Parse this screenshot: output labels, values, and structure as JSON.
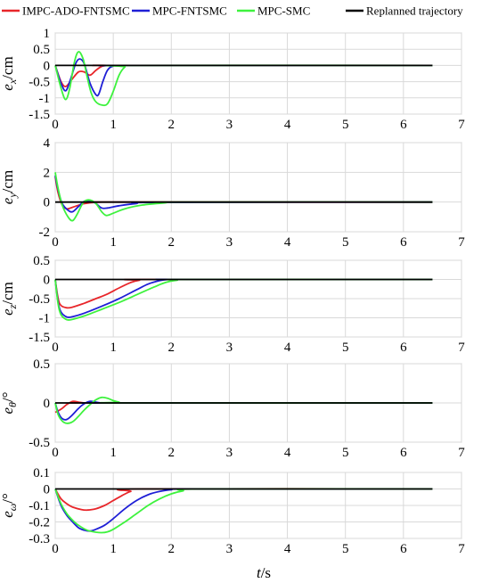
{
  "legend": [
    {
      "label": "IMPC-ADO-FNTSMC",
      "color": "#e8262a"
    },
    {
      "label": "MPC-FNTSMC",
      "color": "#1f1fd6"
    },
    {
      "label": "MPC-SMC",
      "color": "#3ef23e"
    },
    {
      "label": "Replanned trajectory",
      "color": "#000000"
    }
  ],
  "xlabel": {
    "italic": "t",
    "rest": "/s"
  },
  "chart_data": [
    {
      "type": "line",
      "ylabel": {
        "italic": "e",
        "sub": "x",
        "unit": "/cm"
      },
      "xlim": [
        0,
        7
      ],
      "ylim": [
        -1.5,
        1
      ],
      "xticks": [
        "0",
        "1",
        "2",
        "3",
        "4",
        "5",
        "6",
        "7"
      ],
      "yticks": [
        "1",
        "0.5",
        "0",
        "-0.5",
        "-1",
        "-1.5"
      ],
      "series": [
        {
          "name": "IMPC-ADO-FNTSMC",
          "x": [
            0,
            0.1,
            0.18,
            0.28,
            0.4,
            0.5,
            0.6,
            0.7,
            0.8,
            0.9,
            1.1,
            6.5
          ],
          "y": [
            0,
            -0.5,
            -0.65,
            -0.45,
            -0.2,
            -0.2,
            -0.3,
            -0.15,
            -0.03,
            0,
            0,
            0
          ]
        },
        {
          "name": "MPC-FNTSMC",
          "x": [
            0,
            0.1,
            0.18,
            0.26,
            0.35,
            0.42,
            0.5,
            0.6,
            0.7,
            0.75,
            0.82,
            0.9,
            1.0,
            1.2,
            6.5
          ],
          "y": [
            0,
            -0.55,
            -0.78,
            -0.45,
            0.05,
            0.2,
            0.05,
            -0.55,
            -0.9,
            -0.88,
            -0.5,
            -0.15,
            -0.02,
            0,
            0
          ]
        },
        {
          "name": "MPC-SMC",
          "x": [
            0,
            0.1,
            0.18,
            0.25,
            0.33,
            0.4,
            0.48,
            0.55,
            0.62,
            0.7,
            0.8,
            0.9,
            1.0,
            1.1,
            1.2,
            1.3,
            6.5
          ],
          "y": [
            0,
            -0.7,
            -1.05,
            -0.7,
            0.1,
            0.42,
            0.2,
            -0.35,
            -0.85,
            -1.12,
            -1.22,
            -1.18,
            -0.8,
            -0.3,
            -0.05,
            0,
            0
          ]
        },
        {
          "name": "Replanned trajectory",
          "x": [
            0,
            6.5
          ],
          "y": [
            0,
            0
          ]
        }
      ]
    },
    {
      "type": "line",
      "ylabel": {
        "italic": "e",
        "sub": "y",
        "unit": "/cm"
      },
      "xlim": [
        0,
        7
      ],
      "ylim": [
        -2,
        4
      ],
      "xticks": [
        "0",
        "1",
        "2",
        "3",
        "4",
        "5",
        "6",
        "7"
      ],
      "yticks": [
        "4",
        "2",
        "0",
        "-2"
      ],
      "series": [
        {
          "name": "IMPC-ADO-FNTSMC",
          "x": [
            0,
            0.05,
            0.12,
            0.2,
            0.3,
            0.45,
            0.6,
            0.8,
            1.0,
            6.5
          ],
          "y": [
            1.7,
            0.6,
            -0.2,
            -0.45,
            -0.35,
            -0.15,
            -0.05,
            0,
            0,
            0
          ]
        },
        {
          "name": "MPC-FNTSMC",
          "x": [
            0,
            0.05,
            0.12,
            0.22,
            0.3,
            0.4,
            0.5,
            0.6,
            0.7,
            0.8,
            0.9,
            1.1,
            1.4,
            1.8,
            6.5
          ],
          "y": [
            1.8,
            0.8,
            -0.1,
            -0.55,
            -0.65,
            -0.3,
            0.05,
            0.1,
            -0.1,
            -0.4,
            -0.4,
            -0.25,
            -0.1,
            -0.02,
            0
          ]
        },
        {
          "name": "MPC-SMC",
          "x": [
            0,
            0.05,
            0.12,
            0.22,
            0.3,
            0.38,
            0.48,
            0.58,
            0.7,
            0.8,
            0.88,
            1.0,
            1.2,
            1.5,
            1.9,
            2.2,
            6.5
          ],
          "y": [
            2.0,
            0.9,
            -0.2,
            -1.0,
            -1.25,
            -0.8,
            -0.05,
            0.15,
            -0.1,
            -0.65,
            -0.9,
            -0.75,
            -0.45,
            -0.2,
            -0.05,
            0,
            0
          ]
        },
        {
          "name": "Replanned trajectory",
          "x": [
            0,
            6.5
          ],
          "y": [
            0,
            0
          ]
        }
      ]
    },
    {
      "type": "line",
      "ylabel": {
        "italic": "e",
        "sub": "z",
        "unit": "/cm"
      },
      "xlim": [
        0,
        7
      ],
      "ylim": [
        -1.5,
        0.5
      ],
      "xticks": [
        "0",
        "1",
        "2",
        "3",
        "4",
        "5",
        "6",
        "7"
      ],
      "yticks": [
        "0.5",
        "0",
        "-0.5",
        "-1",
        "-1.5"
      ],
      "series": [
        {
          "name": "IMPC-ADO-FNTSMC",
          "x": [
            0,
            0.05,
            0.1,
            0.2,
            0.3,
            0.5,
            0.7,
            0.9,
            1.1,
            1.3,
            1.45,
            1.6,
            6.5
          ],
          "y": [
            0,
            -0.5,
            -0.68,
            -0.74,
            -0.72,
            -0.62,
            -0.5,
            -0.38,
            -0.22,
            -0.08,
            -0.02,
            0,
            0
          ]
        },
        {
          "name": "MPC-FNTSMC",
          "x": [
            0,
            0.05,
            0.1,
            0.2,
            0.3,
            0.5,
            0.8,
            1.1,
            1.4,
            1.6,
            1.8,
            1.95,
            2.1,
            6.5
          ],
          "y": [
            0,
            -0.6,
            -0.85,
            -0.98,
            -0.97,
            -0.88,
            -0.7,
            -0.5,
            -0.27,
            -0.12,
            -0.03,
            0,
            0,
            0
          ]
        },
        {
          "name": "MPC-SMC",
          "x": [
            0,
            0.05,
            0.1,
            0.2,
            0.3,
            0.5,
            0.8,
            1.1,
            1.4,
            1.7,
            1.9,
            2.1,
            2.3,
            6.5
          ],
          "y": [
            0,
            -0.65,
            -0.92,
            -1.05,
            -1.04,
            -0.95,
            -0.78,
            -0.6,
            -0.4,
            -0.2,
            -0.08,
            -0.02,
            0,
            0
          ]
        },
        {
          "name": "Replanned trajectory",
          "x": [
            0,
            6.5
          ],
          "y": [
            0,
            0
          ]
        }
      ]
    },
    {
      "type": "line",
      "ylabel": {
        "italic": "e",
        "sub": "θ",
        "unit": "/°"
      },
      "xlim": [
        0,
        7
      ],
      "ylim": [
        -0.5,
        0.5
      ],
      "xticks": [
        "0",
        "1",
        "2",
        "3",
        "4",
        "5",
        "6",
        "7"
      ],
      "yticks": [
        "0.5",
        "0",
        "-0.5"
      ],
      "series": [
        {
          "name": "IMPC-ADO-FNTSMC",
          "x": [
            0,
            0.1,
            0.2,
            0.3,
            0.4,
            0.5,
            0.6,
            0.7,
            6.5
          ],
          "y": [
            -0.12,
            -0.08,
            -0.02,
            0.02,
            0.01,
            0,
            0,
            0,
            0
          ]
        },
        {
          "name": "MPC-FNTSMC",
          "x": [
            0,
            0.05,
            0.12,
            0.2,
            0.3,
            0.4,
            0.5,
            0.6,
            0.7,
            0.8,
            0.9,
            6.5
          ],
          "y": [
            0,
            -0.12,
            -0.2,
            -0.21,
            -0.15,
            -0.07,
            -0.01,
            0.02,
            0.01,
            0,
            0,
            0
          ]
        },
        {
          "name": "MPC-SMC",
          "x": [
            0,
            0.05,
            0.12,
            0.2,
            0.3,
            0.4,
            0.5,
            0.6,
            0.7,
            0.8,
            0.9,
            1.0,
            1.1,
            1.2,
            6.5
          ],
          "y": [
            0,
            -0.15,
            -0.23,
            -0.26,
            -0.24,
            -0.17,
            -0.09,
            -0.02,
            0.04,
            0.07,
            0.06,
            0.03,
            0.01,
            0,
            0
          ]
        },
        {
          "name": "Replanned trajectory",
          "x": [
            0,
            6.5
          ],
          "y": [
            0,
            0
          ]
        }
      ]
    },
    {
      "type": "line",
      "ylabel": {
        "italic": "e",
        "sub": "ω",
        "unit": "/°"
      },
      "xlim": [
        0,
        7
      ],
      "ylim": [
        -0.3,
        0.1
      ],
      "xticks": [
        "0",
        "1",
        "2",
        "3",
        "4",
        "5",
        "6",
        "7"
      ],
      "yticks": [
        "0.1",
        "0",
        "-0.1",
        "-0.2",
        "-0.3"
      ],
      "series": [
        {
          "name": "IMPC-ADO-FNTSMC",
          "x": [
            0,
            0.1,
            0.2,
            0.3,
            0.45,
            0.55,
            0.7,
            0.85,
            1.0,
            1.15,
            1.3,
            1.5,
            6.5
          ],
          "y": [
            0,
            -0.06,
            -0.09,
            -0.11,
            -0.125,
            -0.128,
            -0.12,
            -0.1,
            -0.07,
            -0.04,
            -0.015,
            0,
            0
          ]
        },
        {
          "name": "MPC-FNTSMC",
          "x": [
            0,
            0.1,
            0.2,
            0.3,
            0.4,
            0.5,
            0.6,
            0.7,
            0.85,
            1.0,
            1.2,
            1.4,
            1.6,
            1.8,
            2.0,
            2.3,
            6.5
          ],
          "y": [
            0,
            -0.1,
            -0.16,
            -0.2,
            -0.235,
            -0.25,
            -0.255,
            -0.245,
            -0.22,
            -0.18,
            -0.12,
            -0.07,
            -0.035,
            -0.015,
            -0.005,
            0,
            0
          ]
        },
        {
          "name": "MPC-SMC",
          "x": [
            0,
            0.1,
            0.2,
            0.3,
            0.4,
            0.55,
            0.7,
            0.8,
            0.9,
            1.0,
            1.2,
            1.4,
            1.6,
            1.8,
            2.0,
            2.2,
            2.5,
            6.5
          ],
          "y": [
            0,
            -0.09,
            -0.15,
            -0.19,
            -0.22,
            -0.25,
            -0.262,
            -0.265,
            -0.26,
            -0.245,
            -0.2,
            -0.15,
            -0.1,
            -0.06,
            -0.03,
            -0.012,
            0,
            0
          ]
        },
        {
          "name": "Replanned trajectory",
          "x": [
            0,
            6.5
          ],
          "y": [
            0,
            0
          ]
        }
      ]
    }
  ]
}
